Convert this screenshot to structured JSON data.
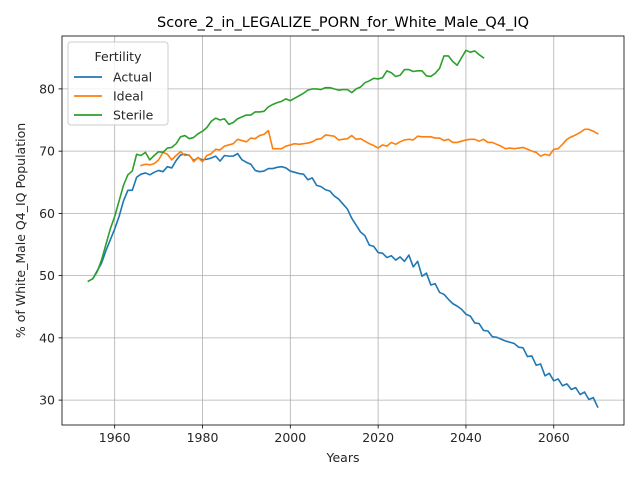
{
  "chart_data": {
    "type": "line",
    "title": "Score_2_in_LEGALIZE_PORN_for_White_Male_Q4_IQ",
    "xlabel": "Years",
    "ylabel": "% of White_Male Q4_IQ Population",
    "xlim": [
      1948,
      2076
    ],
    "ylim": [
      26,
      88.5
    ],
    "xticks": [
      1960,
      1980,
      2000,
      2020,
      2040,
      2060
    ],
    "yticks": [
      30,
      40,
      50,
      60,
      70,
      80
    ],
    "grid": true,
    "legend": {
      "title": "Fertility",
      "placement": "top-left"
    },
    "series": [
      {
        "name": "Actual",
        "color": "#1f77b4",
        "points": [
          [
            1955,
            49.5
          ],
          [
            1957,
            52.0
          ],
          [
            1958,
            54.0
          ],
          [
            1960,
            57.5
          ],
          [
            1961,
            59.5
          ],
          [
            1962,
            62.0
          ],
          [
            1963,
            63.7
          ],
          [
            1964,
            63.7
          ],
          [
            1965,
            65.8
          ],
          [
            1966,
            66.3
          ],
          [
            1967,
            66.5
          ],
          [
            1968,
            66.2
          ],
          [
            1969,
            66.6
          ],
          [
            1970,
            66.9
          ],
          [
            1971,
            66.7
          ],
          [
            1972,
            67.5
          ],
          [
            1973,
            67.3
          ],
          [
            1974,
            68.5
          ],
          [
            1975,
            69.4
          ],
          [
            1976,
            69.5
          ],
          [
            1977,
            69.3
          ],
          [
            1978,
            68.5
          ],
          [
            1979,
            68.9
          ],
          [
            1980,
            68.6
          ],
          [
            1981,
            68.7
          ],
          [
            1982,
            68.9
          ],
          [
            1983,
            69.2
          ],
          [
            1984,
            68.4
          ],
          [
            1985,
            69.3
          ],
          [
            1986,
            69.2
          ],
          [
            1987,
            69.2
          ],
          [
            1988,
            69.6
          ],
          [
            1989,
            68.6
          ],
          [
            1990,
            68.2
          ],
          [
            1991,
            67.9
          ],
          [
            1992,
            66.9
          ],
          [
            1993,
            66.7
          ],
          [
            1994,
            66.8
          ],
          [
            1995,
            67.2
          ],
          [
            1996,
            67.2
          ],
          [
            1997,
            67.4
          ],
          [
            1998,
            67.5
          ],
          [
            1999,
            67.3
          ],
          [
            2000,
            66.8
          ],
          [
            2001,
            66.6
          ],
          [
            2002,
            66.4
          ],
          [
            2003,
            66.3
          ],
          [
            2004,
            65.4
          ],
          [
            2005,
            65.7
          ],
          [
            2006,
            64.5
          ],
          [
            2007,
            64.3
          ],
          [
            2008,
            63.8
          ],
          [
            2009,
            63.6
          ],
          [
            2010,
            62.8
          ],
          [
            2011,
            62.3
          ],
          [
            2012,
            61.5
          ],
          [
            2013,
            60.7
          ],
          [
            2014,
            59.2
          ],
          [
            2015,
            58.1
          ],
          [
            2016,
            57.0
          ],
          [
            2017,
            56.4
          ],
          [
            2018,
            54.9
          ],
          [
            2019,
            54.7
          ],
          [
            2020,
            53.7
          ],
          [
            2021,
            53.6
          ],
          [
            2022,
            52.9
          ],
          [
            2023,
            53.2
          ],
          [
            2024,
            52.5
          ],
          [
            2025,
            53.0
          ],
          [
            2026,
            52.3
          ],
          [
            2027,
            53.3
          ],
          [
            2028,
            51.4
          ],
          [
            2029,
            52.3
          ],
          [
            2030,
            49.9
          ],
          [
            2031,
            50.4
          ],
          [
            2032,
            48.5
          ],
          [
            2033,
            48.7
          ],
          [
            2034,
            47.3
          ],
          [
            2035,
            47.0
          ],
          [
            2036,
            46.2
          ],
          [
            2037,
            45.5
          ],
          [
            2038,
            45.1
          ],
          [
            2039,
            44.6
          ],
          [
            2040,
            43.8
          ],
          [
            2041,
            43.5
          ],
          [
            2042,
            42.4
          ],
          [
            2043,
            42.3
          ],
          [
            2044,
            41.2
          ],
          [
            2045,
            41.1
          ],
          [
            2046,
            40.2
          ],
          [
            2047,
            40.1
          ],
          [
            2048,
            39.8
          ],
          [
            2049,
            39.5
          ],
          [
            2050,
            39.3
          ],
          [
            2051,
            39.1
          ],
          [
            2052,
            38.5
          ],
          [
            2053,
            38.4
          ],
          [
            2054,
            37.0
          ],
          [
            2055,
            37.1
          ],
          [
            2056,
            35.6
          ],
          [
            2057,
            35.8
          ],
          [
            2058,
            33.9
          ],
          [
            2059,
            34.3
          ],
          [
            2060,
            33.1
          ],
          [
            2061,
            33.4
          ],
          [
            2062,
            32.3
          ],
          [
            2063,
            32.6
          ],
          [
            2064,
            31.7
          ],
          [
            2065,
            32.0
          ],
          [
            2066,
            30.9
          ],
          [
            2067,
            31.3
          ],
          [
            2068,
            30.1
          ],
          [
            2069,
            30.4
          ],
          [
            2070,
            28.9
          ]
        ]
      },
      {
        "name": "Ideal",
        "color": "#ff7f0e",
        "points": [
          [
            1966,
            67.7
          ],
          [
            1967,
            67.9
          ],
          [
            1968,
            67.8
          ],
          [
            1969,
            68.0
          ],
          [
            1970,
            68.6
          ],
          [
            1971,
            69.8
          ],
          [
            1972,
            69.5
          ],
          [
            1973,
            68.6
          ],
          [
            1974,
            69.3
          ],
          [
            1975,
            69.9
          ],
          [
            1976,
            69.3
          ],
          [
            1977,
            69.4
          ],
          [
            1978,
            68.3
          ],
          [
            1979,
            69.0
          ],
          [
            1980,
            68.3
          ],
          [
            1981,
            69.3
          ],
          [
            1982,
            69.6
          ],
          [
            1983,
            70.3
          ],
          [
            1984,
            70.2
          ],
          [
            1985,
            70.8
          ],
          [
            1986,
            71.0
          ],
          [
            1987,
            71.2
          ],
          [
            1988,
            71.9
          ],
          [
            1989,
            71.7
          ],
          [
            1990,
            71.5
          ],
          [
            1991,
            72.1
          ],
          [
            1992,
            72.0
          ],
          [
            1993,
            72.5
          ],
          [
            1994,
            72.7
          ],
          [
            1995,
            73.3
          ],
          [
            1996,
            70.4
          ],
          [
            1997,
            70.4
          ],
          [
            1998,
            70.4
          ],
          [
            1999,
            70.8
          ],
          [
            2000,
            71.0
          ],
          [
            2001,
            71.2
          ],
          [
            2002,
            71.1
          ],
          [
            2003,
            71.2
          ],
          [
            2004,
            71.3
          ],
          [
            2005,
            71.5
          ],
          [
            2006,
            71.9
          ],
          [
            2007,
            72.0
          ],
          [
            2008,
            72.6
          ],
          [
            2009,
            72.5
          ],
          [
            2010,
            72.4
          ],
          [
            2011,
            71.8
          ],
          [
            2012,
            71.9
          ],
          [
            2013,
            72.0
          ],
          [
            2014,
            72.5
          ],
          [
            2015,
            71.9
          ],
          [
            2016,
            72.0
          ],
          [
            2017,
            71.6
          ],
          [
            2018,
            71.2
          ],
          [
            2019,
            70.9
          ],
          [
            2020,
            70.5
          ],
          [
            2021,
            71.0
          ],
          [
            2022,
            70.8
          ],
          [
            2023,
            71.4
          ],
          [
            2024,
            71.1
          ],
          [
            2025,
            71.5
          ],
          [
            2026,
            71.8
          ],
          [
            2027,
            71.9
          ],
          [
            2028,
            71.8
          ],
          [
            2029,
            72.4
          ],
          [
            2030,
            72.3
          ],
          [
            2031,
            72.3
          ],
          [
            2032,
            72.3
          ],
          [
            2033,
            72.1
          ],
          [
            2034,
            72.1
          ],
          [
            2035,
            71.7
          ],
          [
            2036,
            71.9
          ],
          [
            2037,
            71.4
          ],
          [
            2038,
            71.4
          ],
          [
            2039,
            71.6
          ],
          [
            2040,
            71.8
          ],
          [
            2041,
            71.9
          ],
          [
            2042,
            71.9
          ],
          [
            2043,
            71.6
          ],
          [
            2044,
            71.9
          ],
          [
            2045,
            71.4
          ],
          [
            2046,
            71.4
          ],
          [
            2047,
            71.1
          ],
          [
            2048,
            70.8
          ],
          [
            2049,
            70.4
          ],
          [
            2050,
            70.5
          ],
          [
            2051,
            70.4
          ],
          [
            2052,
            70.5
          ],
          [
            2053,
            70.6
          ],
          [
            2054,
            70.3
          ],
          [
            2055,
            70.0
          ],
          [
            2056,
            69.8
          ],
          [
            2057,
            69.2
          ],
          [
            2058,
            69.5
          ],
          [
            2059,
            69.3
          ],
          [
            2060,
            70.3
          ],
          [
            2061,
            70.4
          ],
          [
            2062,
            71.1
          ],
          [
            2063,
            71.9
          ],
          [
            2064,
            72.3
          ],
          [
            2065,
            72.6
          ],
          [
            2066,
            73.0
          ],
          [
            2067,
            73.5
          ],
          [
            2068,
            73.5
          ],
          [
            2069,
            73.2
          ],
          [
            2070,
            72.8
          ]
        ]
      },
      {
        "name": "Sterile",
        "color": "#2ca02c",
        "points": [
          [
            1954,
            49.1
          ],
          [
            1955,
            49.5
          ],
          [
            1956,
            50.6
          ],
          [
            1957,
            52.5
          ],
          [
            1958,
            55.0
          ],
          [
            1959,
            57.5
          ],
          [
            1960,
            59.5
          ],
          [
            1961,
            62.0
          ],
          [
            1962,
            64.5
          ],
          [
            1963,
            66.2
          ],
          [
            1964,
            66.8
          ],
          [
            1965,
            69.5
          ],
          [
            1966,
            69.3
          ],
          [
            1967,
            69.8
          ],
          [
            1968,
            68.6
          ],
          [
            1969,
            69.3
          ],
          [
            1970,
            69.9
          ],
          [
            1971,
            69.8
          ],
          [
            1972,
            70.5
          ],
          [
            1973,
            70.6
          ],
          [
            1974,
            71.2
          ],
          [
            1975,
            72.3
          ],
          [
            1976,
            72.5
          ],
          [
            1977,
            72.0
          ],
          [
            1978,
            72.2
          ],
          [
            1979,
            72.8
          ],
          [
            1980,
            73.2
          ],
          [
            1981,
            73.8
          ],
          [
            1982,
            74.8
          ],
          [
            1983,
            75.3
          ],
          [
            1984,
            75.0
          ],
          [
            1985,
            75.2
          ],
          [
            1986,
            74.3
          ],
          [
            1987,
            74.6
          ],
          [
            1988,
            75.2
          ],
          [
            1989,
            75.5
          ],
          [
            1990,
            75.8
          ],
          [
            1991,
            75.8
          ],
          [
            1992,
            76.3
          ],
          [
            1993,
            76.3
          ],
          [
            1994,
            76.4
          ],
          [
            1995,
            77.1
          ],
          [
            1996,
            77.5
          ],
          [
            1997,
            77.8
          ],
          [
            1998,
            78.0
          ],
          [
            1999,
            78.4
          ],
          [
            2000,
            78.1
          ],
          [
            2001,
            78.5
          ],
          [
            2002,
            78.9
          ],
          [
            2003,
            79.3
          ],
          [
            2004,
            79.8
          ],
          [
            2005,
            80.0
          ],
          [
            2006,
            80.0
          ],
          [
            2007,
            79.9
          ],
          [
            2008,
            80.2
          ],
          [
            2009,
            80.2
          ],
          [
            2010,
            80.0
          ],
          [
            2011,
            79.8
          ],
          [
            2012,
            79.9
          ],
          [
            2013,
            79.9
          ],
          [
            2014,
            79.4
          ],
          [
            2015,
            80.0
          ],
          [
            2016,
            80.3
          ],
          [
            2017,
            81.0
          ],
          [
            2018,
            81.3
          ],
          [
            2019,
            81.7
          ],
          [
            2020,
            81.6
          ],
          [
            2021,
            81.8
          ],
          [
            2022,
            82.9
          ],
          [
            2023,
            82.6
          ],
          [
            2024,
            82.0
          ],
          [
            2025,
            82.2
          ],
          [
            2026,
            83.1
          ],
          [
            2027,
            83.1
          ],
          [
            2028,
            82.8
          ],
          [
            2029,
            82.9
          ],
          [
            2030,
            82.9
          ],
          [
            2031,
            82.1
          ],
          [
            2032,
            82.0
          ],
          [
            2033,
            82.5
          ],
          [
            2034,
            83.3
          ],
          [
            2035,
            85.3
          ],
          [
            2036,
            85.3
          ],
          [
            2037,
            84.4
          ],
          [
            2038,
            83.8
          ],
          [
            2039,
            85.0
          ],
          [
            2040,
            86.2
          ],
          [
            2041,
            85.9
          ],
          [
            2042,
            86.1
          ],
          [
            2043,
            85.5
          ],
          [
            2044,
            85.0
          ]
        ]
      }
    ]
  }
}
